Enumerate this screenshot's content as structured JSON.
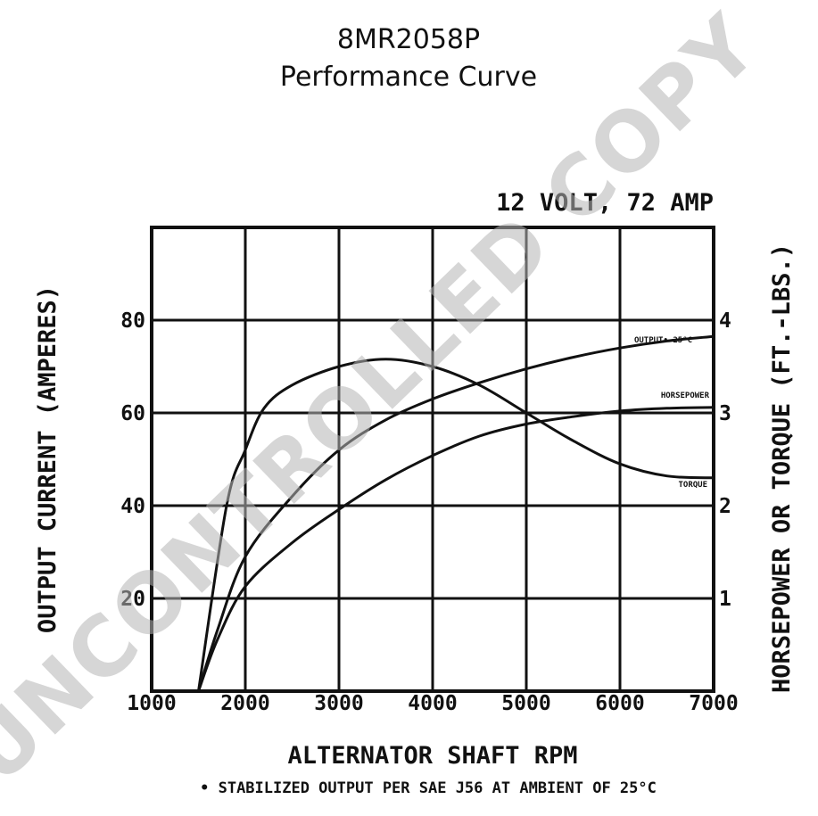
{
  "title": "8MR2058P",
  "subtitle": "Performance Curve",
  "chart_data": {
    "type": "line",
    "chart_subtitle": "12 VOLT, 72 AMP",
    "xlabel": "ALTERNATOR SHAFT RPM",
    "ylabel_left": "OUTPUT CURRENT (AMPERES)",
    "ylabel_right": "HORSEPOWER OR TORQUE (FT.-LBS.)",
    "footnote": "• STABILIZED OUTPUT PER SAE J56 AT AMBIENT OF 25°C",
    "xlim": [
      1000,
      7000
    ],
    "ylim_left": [
      0,
      100
    ],
    "ylim_right": [
      0,
      5
    ],
    "grid": true,
    "x_ticks": [
      "1000",
      "2000",
      "3000",
      "4000",
      "5000",
      "6000",
      "7000"
    ],
    "y_ticks_left": [
      {
        "value": 20,
        "label": "20"
      },
      {
        "value": 40,
        "label": "40"
      },
      {
        "value": 60,
        "label": "60"
      },
      {
        "value": 80,
        "label": "80"
      }
    ],
    "y_ticks_right": [
      {
        "value": 1,
        "label": "1"
      },
      {
        "value": 2,
        "label": "2"
      },
      {
        "value": 3,
        "label": "3"
      },
      {
        "value": 4,
        "label": "4"
      }
    ],
    "series": [
      {
        "name": "OUTPUT• 25°C",
        "axis": "left",
        "x": [
          1500,
          1700,
          2000,
          2500,
          3000,
          3500,
          4000,
          4500,
          5000,
          5500,
          6000,
          6500,
          7000
        ],
        "y": [
          0,
          13,
          29,
          42,
          52,
          58.5,
          63,
          66.5,
          69.5,
          72,
          74,
          75.5,
          76.5
        ]
      },
      {
        "name": "HORSEPOWER",
        "axis": "right",
        "x": [
          1500,
          1700,
          2000,
          2500,
          3000,
          3500,
          4000,
          4500,
          5000,
          5500,
          6000,
          6500,
          7000
        ],
        "y": [
          0,
          0.55,
          1.13,
          1.6,
          1.96,
          2.28,
          2.54,
          2.75,
          2.88,
          2.96,
          3.02,
          3.05,
          3.06
        ]
      },
      {
        "name": "TORQUE",
        "axis": "right",
        "x": [
          1500,
          1800,
          2000,
          2200,
          2500,
          3000,
          3500,
          4000,
          4500,
          5000,
          5500,
          6000,
          6500,
          7000
        ],
        "y": [
          0,
          2.0,
          2.6,
          3.05,
          3.3,
          3.5,
          3.58,
          3.5,
          3.3,
          3.0,
          2.7,
          2.45,
          2.32,
          2.3
        ]
      }
    ]
  },
  "watermark": "UNCONTROLLED COPY"
}
